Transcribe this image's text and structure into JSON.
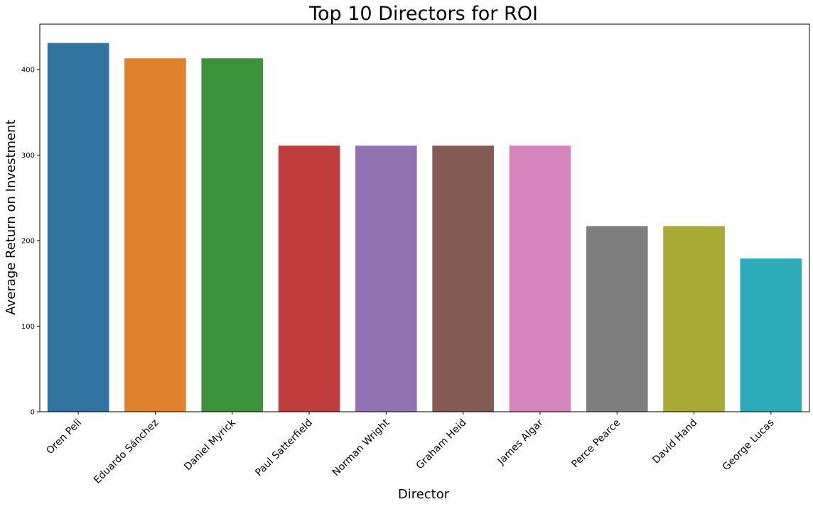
{
  "chart_data": {
    "type": "bar",
    "title": "Top 10 Directors for ROI",
    "xlabel": "Director",
    "ylabel": "Average Return on Investment",
    "categories": [
      "Oren Peli",
      "Eduardo Sánchez",
      "Daniel Myrick",
      "Paul Satterfield",
      "Norman Wright",
      "Graham Heid",
      "James Algar",
      "Perce Pearce",
      "David Hand",
      "George Lucas"
    ],
    "values": [
      431,
      413,
      413,
      311,
      311,
      311,
      311,
      217,
      217,
      179
    ],
    "colors": [
      "#3274a1",
      "#e1812c",
      "#3a923a",
      "#c03d3e",
      "#9372b2",
      "#845b53",
      "#d684bd",
      "#7f7f7f",
      "#a9aa35",
      "#2eabb8"
    ],
    "ylim": [
      0,
      453
    ],
    "yticks": [
      0,
      100,
      200,
      300,
      400
    ],
    "grid": false,
    "legend": "none"
  }
}
